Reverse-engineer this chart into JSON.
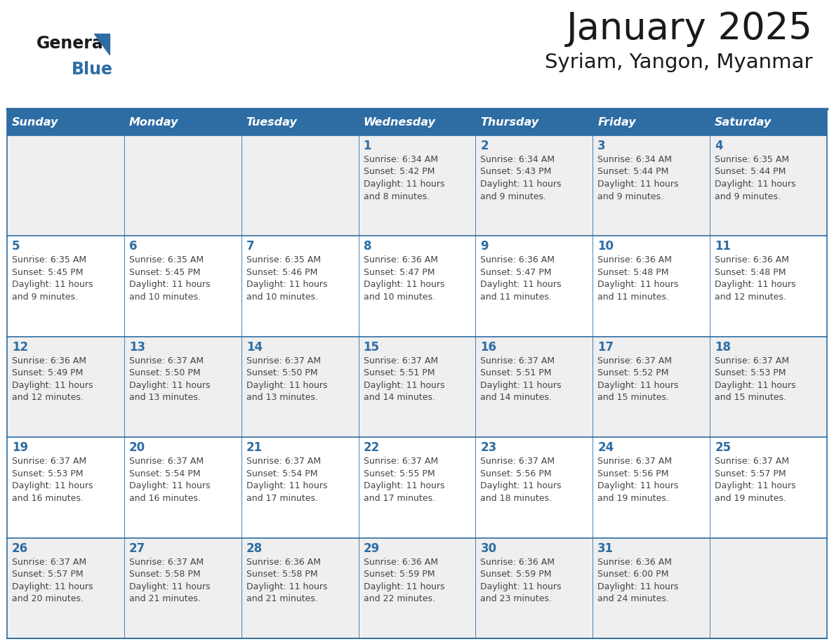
{
  "title": "January 2025",
  "subtitle": "Syriam, Yangon, Myanmar",
  "days_of_week": [
    "Sunday",
    "Monday",
    "Tuesday",
    "Wednesday",
    "Thursday",
    "Friday",
    "Saturday"
  ],
  "header_bg": "#2e6da4",
  "header_text": "#FFFFFF",
  "cell_bg_odd": "#efefef",
  "cell_bg_even": "#ffffff",
  "day_number_color": "#2e6da4",
  "body_text_color": "#444444",
  "border_color": "#2e6da4",
  "logo_color_general": "#1a1a1a",
  "logo_color_blue": "#2e6da4",
  "title_color": "#1a1a1a",
  "calendar_data": [
    [
      {
        "day": null,
        "lines": []
      },
      {
        "day": null,
        "lines": []
      },
      {
        "day": null,
        "lines": []
      },
      {
        "day": 1,
        "lines": [
          "Sunrise: 6:34 AM",
          "Sunset: 5:42 PM",
          "Daylight: 11 hours",
          "and 8 minutes."
        ]
      },
      {
        "day": 2,
        "lines": [
          "Sunrise: 6:34 AM",
          "Sunset: 5:43 PM",
          "Daylight: 11 hours",
          "and 9 minutes."
        ]
      },
      {
        "day": 3,
        "lines": [
          "Sunrise: 6:34 AM",
          "Sunset: 5:44 PM",
          "Daylight: 11 hours",
          "and 9 minutes."
        ]
      },
      {
        "day": 4,
        "lines": [
          "Sunrise: 6:35 AM",
          "Sunset: 5:44 PM",
          "Daylight: 11 hours",
          "and 9 minutes."
        ]
      }
    ],
    [
      {
        "day": 5,
        "lines": [
          "Sunrise: 6:35 AM",
          "Sunset: 5:45 PM",
          "Daylight: 11 hours",
          "and 9 minutes."
        ]
      },
      {
        "day": 6,
        "lines": [
          "Sunrise: 6:35 AM",
          "Sunset: 5:45 PM",
          "Daylight: 11 hours",
          "and 10 minutes."
        ]
      },
      {
        "day": 7,
        "lines": [
          "Sunrise: 6:35 AM",
          "Sunset: 5:46 PM",
          "Daylight: 11 hours",
          "and 10 minutes."
        ]
      },
      {
        "day": 8,
        "lines": [
          "Sunrise: 6:36 AM",
          "Sunset: 5:47 PM",
          "Daylight: 11 hours",
          "and 10 minutes."
        ]
      },
      {
        "day": 9,
        "lines": [
          "Sunrise: 6:36 AM",
          "Sunset: 5:47 PM",
          "Daylight: 11 hours",
          "and 11 minutes."
        ]
      },
      {
        "day": 10,
        "lines": [
          "Sunrise: 6:36 AM",
          "Sunset: 5:48 PM",
          "Daylight: 11 hours",
          "and 11 minutes."
        ]
      },
      {
        "day": 11,
        "lines": [
          "Sunrise: 6:36 AM",
          "Sunset: 5:48 PM",
          "Daylight: 11 hours",
          "and 12 minutes."
        ]
      }
    ],
    [
      {
        "day": 12,
        "lines": [
          "Sunrise: 6:36 AM",
          "Sunset: 5:49 PM",
          "Daylight: 11 hours",
          "and 12 minutes."
        ]
      },
      {
        "day": 13,
        "lines": [
          "Sunrise: 6:37 AM",
          "Sunset: 5:50 PM",
          "Daylight: 11 hours",
          "and 13 minutes."
        ]
      },
      {
        "day": 14,
        "lines": [
          "Sunrise: 6:37 AM",
          "Sunset: 5:50 PM",
          "Daylight: 11 hours",
          "and 13 minutes."
        ]
      },
      {
        "day": 15,
        "lines": [
          "Sunrise: 6:37 AM",
          "Sunset: 5:51 PM",
          "Daylight: 11 hours",
          "and 14 minutes."
        ]
      },
      {
        "day": 16,
        "lines": [
          "Sunrise: 6:37 AM",
          "Sunset: 5:51 PM",
          "Daylight: 11 hours",
          "and 14 minutes."
        ]
      },
      {
        "day": 17,
        "lines": [
          "Sunrise: 6:37 AM",
          "Sunset: 5:52 PM",
          "Daylight: 11 hours",
          "and 15 minutes."
        ]
      },
      {
        "day": 18,
        "lines": [
          "Sunrise: 6:37 AM",
          "Sunset: 5:53 PM",
          "Daylight: 11 hours",
          "and 15 minutes."
        ]
      }
    ],
    [
      {
        "day": 19,
        "lines": [
          "Sunrise: 6:37 AM",
          "Sunset: 5:53 PM",
          "Daylight: 11 hours",
          "and 16 minutes."
        ]
      },
      {
        "day": 20,
        "lines": [
          "Sunrise: 6:37 AM",
          "Sunset: 5:54 PM",
          "Daylight: 11 hours",
          "and 16 minutes."
        ]
      },
      {
        "day": 21,
        "lines": [
          "Sunrise: 6:37 AM",
          "Sunset: 5:54 PM",
          "Daylight: 11 hours",
          "and 17 minutes."
        ]
      },
      {
        "day": 22,
        "lines": [
          "Sunrise: 6:37 AM",
          "Sunset: 5:55 PM",
          "Daylight: 11 hours",
          "and 17 minutes."
        ]
      },
      {
        "day": 23,
        "lines": [
          "Sunrise: 6:37 AM",
          "Sunset: 5:56 PM",
          "Daylight: 11 hours",
          "and 18 minutes."
        ]
      },
      {
        "day": 24,
        "lines": [
          "Sunrise: 6:37 AM",
          "Sunset: 5:56 PM",
          "Daylight: 11 hours",
          "and 19 minutes."
        ]
      },
      {
        "day": 25,
        "lines": [
          "Sunrise: 6:37 AM",
          "Sunset: 5:57 PM",
          "Daylight: 11 hours",
          "and 19 minutes."
        ]
      }
    ],
    [
      {
        "day": 26,
        "lines": [
          "Sunrise: 6:37 AM",
          "Sunset: 5:57 PM",
          "Daylight: 11 hours",
          "and 20 minutes."
        ]
      },
      {
        "day": 27,
        "lines": [
          "Sunrise: 6:37 AM",
          "Sunset: 5:58 PM",
          "Daylight: 11 hours",
          "and 21 minutes."
        ]
      },
      {
        "day": 28,
        "lines": [
          "Sunrise: 6:36 AM",
          "Sunset: 5:58 PM",
          "Daylight: 11 hours",
          "and 21 minutes."
        ]
      },
      {
        "day": 29,
        "lines": [
          "Sunrise: 6:36 AM",
          "Sunset: 5:59 PM",
          "Daylight: 11 hours",
          "and 22 minutes."
        ]
      },
      {
        "day": 30,
        "lines": [
          "Sunrise: 6:36 AM",
          "Sunset: 5:59 PM",
          "Daylight: 11 hours",
          "and 23 minutes."
        ]
      },
      {
        "day": 31,
        "lines": [
          "Sunrise: 6:36 AM",
          "Sunset: 6:00 PM",
          "Daylight: 11 hours",
          "and 24 minutes."
        ]
      },
      {
        "day": null,
        "lines": []
      }
    ]
  ]
}
